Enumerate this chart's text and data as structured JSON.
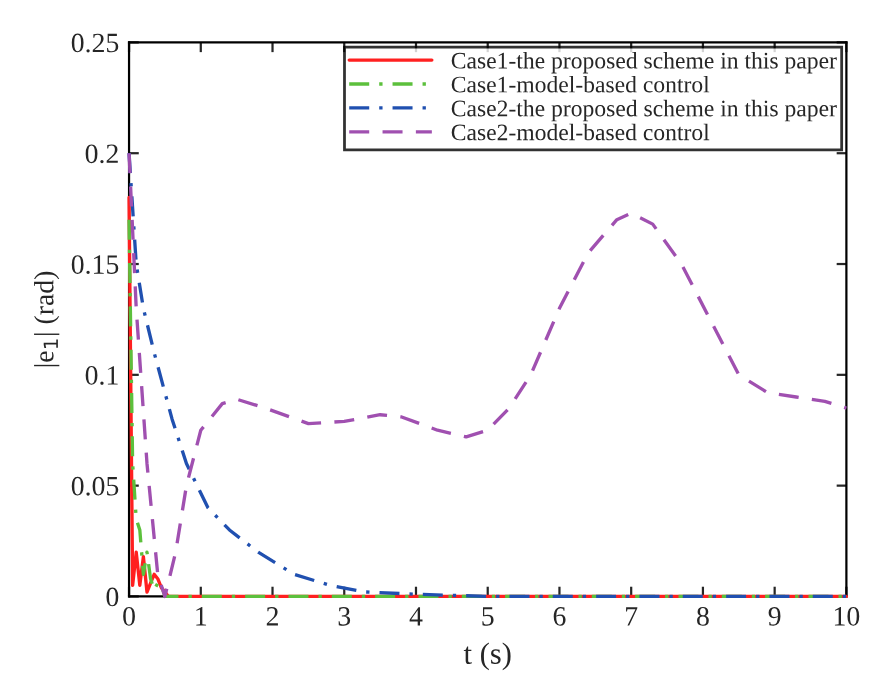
{
  "chart_data": {
    "type": "line",
    "xlabel": "t (s)",
    "ylabel": "|e$_{1}$| (rad)",
    "xlim": [
      0,
      10
    ],
    "ylim": [
      0,
      0.25
    ],
    "xticks": [
      0,
      1,
      2,
      3,
      4,
      5,
      6,
      7,
      8,
      9,
      10
    ],
    "yticks": [
      0,
      0.05,
      0.1,
      0.15,
      0.2,
      0.25
    ],
    "grid": false,
    "legend": "top right",
    "series": [
      {
        "name": "Case1-the proposed scheme in this paper",
        "color": "#ff2020",
        "line_style": "solid",
        "x": [
          0,
          0.05,
          0.1,
          0.15,
          0.2,
          0.25,
          0.3,
          0.35,
          0.4,
          0.45,
          0.55,
          1,
          3,
          5,
          7,
          10
        ],
        "values": [
          0.18,
          0.005,
          0.02,
          0.005,
          0.018,
          0.002,
          0.006,
          0.01,
          0.008,
          0.004,
          0,
          0,
          0,
          0,
          0,
          0
        ]
      },
      {
        "name": "Case1-model-based control",
        "color": "#5cc03c",
        "line_style": "dashdot",
        "x": [
          0,
          0.05,
          0.1,
          0.15,
          0.2,
          0.25,
          0.3,
          0.35,
          0.4,
          0.45,
          0.5,
          1,
          3,
          5,
          7,
          10
        ],
        "values": [
          0.17,
          0.06,
          0.035,
          0.03,
          0.01,
          0.02,
          0.008,
          0.003,
          0.006,
          0.005,
          0,
          0,
          0,
          0,
          0,
          0
        ]
      },
      {
        "name": "Case2-the proposed scheme in this paper",
        "color": "#2050b0",
        "line_style": "dashdot",
        "x": [
          0,
          0.1,
          0.2,
          0.35,
          0.6,
          0.8,
          1.1,
          1.4,
          1.8,
          2.3,
          2.8,
          3.3,
          4,
          5,
          7,
          10
        ],
        "values": [
          0.2,
          0.15,
          0.13,
          0.11,
          0.08,
          0.06,
          0.04,
          0.03,
          0.02,
          0.01,
          0.005,
          0.002,
          0.001,
          0,
          0,
          0
        ]
      },
      {
        "name": "Case2-model-based control",
        "color": "#a050b0",
        "line_style": "dashed",
        "x": [
          0,
          0.1,
          0.25,
          0.4,
          0.5,
          0.65,
          0.8,
          1.0,
          1.3,
          1.5,
          1.9,
          2.5,
          3.0,
          3.5,
          3.8,
          4.3,
          4.7,
          5.0,
          5.3,
          5.6,
          6.0,
          6.4,
          6.8,
          7.0,
          7.3,
          7.7,
          8.1,
          8.5,
          8.9,
          9.3,
          9.7,
          10
        ],
        "values": [
          0.2,
          0.13,
          0.06,
          0.01,
          0,
          0.02,
          0.05,
          0.075,
          0.087,
          0.089,
          0.085,
          0.078,
          0.079,
          0.082,
          0.081,
          0.075,
          0.072,
          0.075,
          0.085,
          0.1,
          0.13,
          0.155,
          0.17,
          0.173,
          0.168,
          0.15,
          0.125,
          0.1,
          0.092,
          0.09,
          0.088,
          0.085
        ]
      }
    ]
  }
}
